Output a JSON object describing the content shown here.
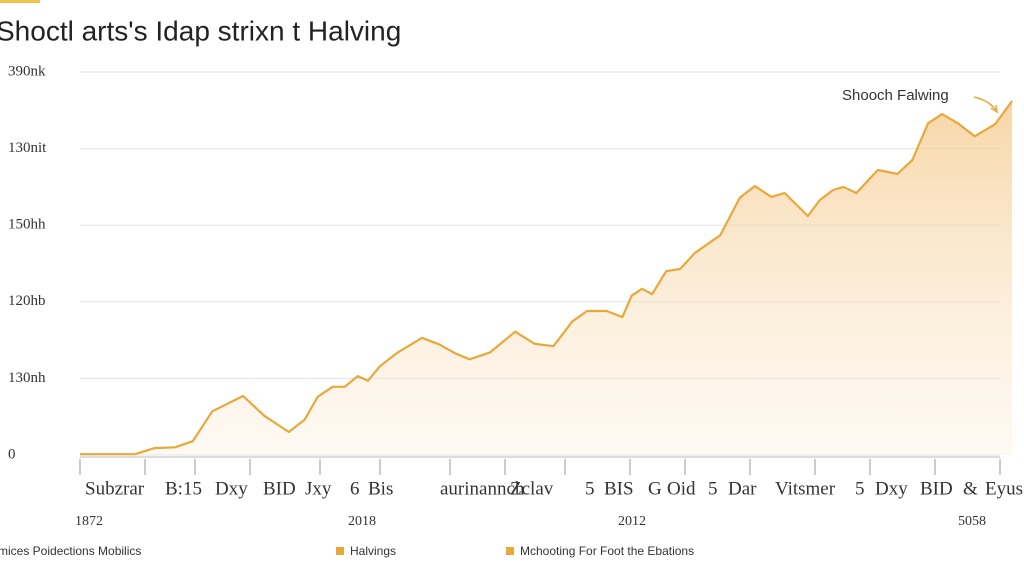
{
  "chart_data": {
    "type": "area",
    "title": "Shoctl arts's Idap strixn t Halving",
    "x": [
      0,
      5.9,
      8.0,
      10.2,
      12.1,
      14.2,
      17.5,
      19.8,
      22.4,
      24.1,
      25.5,
      27.1,
      28.4,
      29.8,
      30.9,
      32.2,
      34.1,
      36.7,
      38.6,
      40.2,
      41.8,
      44.0,
      46.7,
      48.8,
      50.8,
      52.8,
      54.4,
      56.5,
      58.2,
      59.2,
      60.3,
      61.4,
      62.9,
      64.4,
      66.0,
      68.7,
      70.8,
      72.4,
      74.2,
      75.6,
      78.1,
      79.4,
      80.8,
      81.9,
      83.3,
      85.6,
      87.7,
      89.3,
      91.0,
      92.5,
      94.2,
      96.0,
      98.2,
      100
    ],
    "values": [
      0.01,
      0.01,
      0.09,
      0.1,
      0.18,
      0.57,
      0.77,
      0.51,
      0.3,
      0.46,
      0.76,
      0.89,
      0.89,
      1.03,
      0.97,
      1.16,
      1.34,
      1.53,
      1.44,
      1.33,
      1.25,
      1.34,
      1.61,
      1.45,
      1.42,
      1.74,
      1.88,
      1.88,
      1.8,
      2.08,
      2.17,
      2.1,
      2.4,
      2.43,
      2.64,
      2.87,
      3.36,
      3.51,
      3.37,
      3.42,
      3.12,
      3.33,
      3.46,
      3.5,
      3.42,
      3.72,
      3.67,
      3.85,
      4.33,
      4.45,
      4.33,
      4.16,
      4.32,
      4.62
    ],
    "color": "#e9a83a",
    "xlim": [
      0,
      100
    ],
    "ylim": [
      0,
      5
    ],
    "yticks": [
      0,
      {
        "value": 1,
        "label": "130nh"
      },
      {
        "value": 2,
        "label": "120hb"
      },
      {
        "value": 3,
        "label": "150hh"
      },
      {
        "value": 4,
        "label": "130nit"
      },
      {
        "value": 5,
        "label": "390nk"
      }
    ],
    "grid": true,
    "x_tick_labels": [
      "Subzrar",
      "B:15",
      "Dxy",
      "BID",
      "Jxy",
      "6",
      "Bis",
      "aurinannch",
      "Zclav",
      "5",
      "BIS",
      "G",
      "Oid",
      "5",
      "Dar",
      "Vitsmer",
      "5",
      "Dxy",
      "BID",
      "&",
      "Eyus"
    ],
    "x_sublabels": [
      "1872",
      "2018",
      "2012",
      "5058"
    ],
    "annotation": "Shooch Falwing",
    "legend": [
      {
        "name": "mices Poidections Mobilics"
      },
      {
        "name": "Halvings",
        "color": "#e9a83a"
      },
      {
        "name": "Mchooting For Foot the Ebations",
        "color": "#e9a83a"
      }
    ]
  }
}
